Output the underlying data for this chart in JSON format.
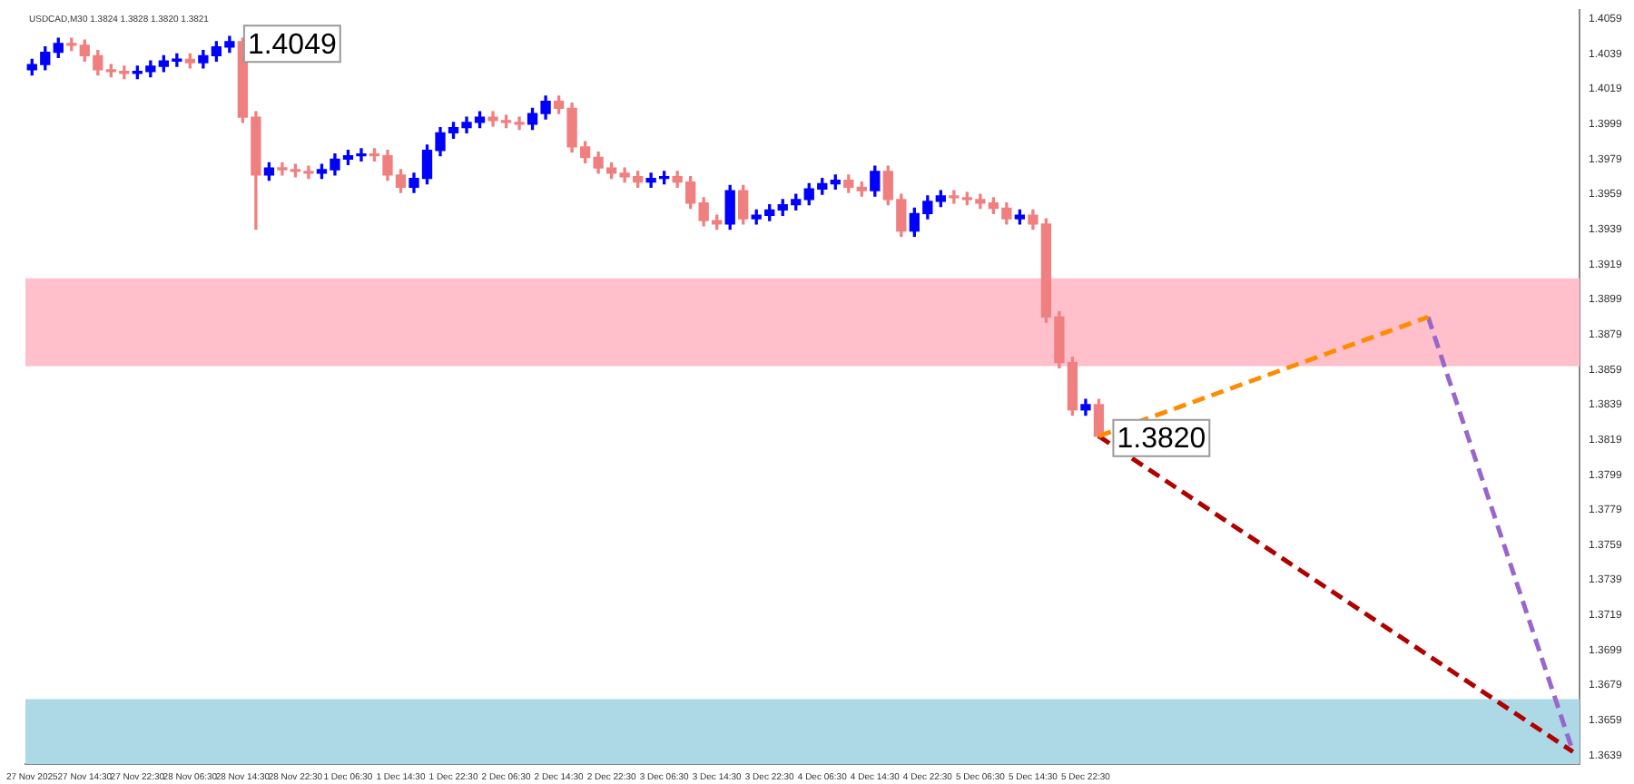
{
  "chart_data": {
    "type": "candlestick",
    "subtitle": "USDCAD,M30 1.3824 1.3828 1.3820 1.3821",
    "categories": [
      "27 Nov 2025",
      null,
      null,
      null,
      "27 Nov 14:30",
      null,
      null,
      null,
      "27 Nov 22:30",
      null,
      null,
      null,
      "28 Nov 06:30",
      null,
      null,
      null,
      "28 Nov 14:30",
      null,
      null,
      null,
      "28 Nov 22:30",
      null,
      null,
      null,
      "1 Dec 06:30",
      null,
      null,
      null,
      "1 Dec 14:30",
      null,
      null,
      null,
      "1 Dec 22:30",
      null,
      null,
      null,
      "2 Dec 06:30",
      null,
      null,
      null,
      "2 Dec 14:30",
      null,
      null,
      null,
      "2 Dec 22:30",
      null,
      null,
      null,
      "3 Dec 06:30",
      null,
      null,
      null,
      "3 Dec 14:30",
      null,
      null,
      null,
      "3 Dec 22:30",
      null,
      null,
      null,
      "4 Dec 06:30",
      null,
      null,
      null,
      "4 Dec 14:30",
      null,
      null,
      null,
      "4 Dec 22:30",
      null,
      null,
      null,
      "5 Dec 06:30",
      null,
      null,
      null,
      "5 Dec 14:30",
      null,
      null,
      null,
      "5 Dec 22:30",
      null,
      null,
      null,
      null,
      null,
      null,
      null,
      null,
      null,
      null,
      null,
      null,
      null,
      null,
      null,
      null,
      null,
      null,
      null,
      null,
      null,
      null,
      null,
      null,
      null,
      null,
      null,
      null,
      null,
      null,
      null,
      null,
      null,
      null,
      null,
      null,
      null
    ],
    "ohlc": [
      [
        1.403,
        1.4036,
        1.4027,
        1.4033
      ],
      [
        1.4033,
        1.4043,
        1.403,
        1.404
      ],
      [
        1.404,
        1.4048,
        1.4037,
        1.4045
      ],
      [
        1.4045,
        1.4048,
        1.4041,
        1.4044
      ],
      [
        1.4044,
        1.4047,
        1.4035,
        1.4038
      ],
      [
        1.4038,
        1.4041,
        1.4027,
        1.403
      ],
      [
        1.403,
        1.4033,
        1.4026,
        1.4029
      ],
      [
        1.4029,
        1.4032,
        1.4025,
        1.4028
      ],
      [
        1.4028,
        1.4032,
        1.4025,
        1.4029
      ],
      [
        1.4029,
        1.4035,
        1.4026,
        1.4032
      ],
      [
        1.4032,
        1.4038,
        1.4029,
        1.4035
      ],
      [
        1.4035,
        1.4039,
        1.4032,
        1.4036
      ],
      [
        1.4036,
        1.4039,
        1.4031,
        1.4034
      ],
      [
        1.4034,
        1.4041,
        1.4031,
        1.4038
      ],
      [
        1.4038,
        1.4046,
        1.4035,
        1.4043
      ],
      [
        1.4043,
        1.4049,
        1.404,
        1.4046
      ],
      [
        1.4046,
        1.4048,
        1.4,
        1.4003
      ],
      [
        1.4003,
        1.4006,
        1.3939,
        1.397
      ],
      [
        1.397,
        1.3977,
        1.3967,
        1.3974
      ],
      [
        1.3974,
        1.3977,
        1.397,
        1.3973
      ],
      [
        1.3973,
        1.3976,
        1.3969,
        1.3972
      ],
      [
        1.3972,
        1.3975,
        1.3968,
        1.3971
      ],
      [
        1.3971,
        1.3976,
        1.3968,
        1.3973
      ],
      [
        1.3973,
        1.3982,
        1.397,
        1.3979
      ],
      [
        1.3979,
        1.3984,
        1.3976,
        1.3981
      ],
      [
        1.3981,
        1.3985,
        1.3978,
        1.3982
      ],
      [
        1.3982,
        1.3985,
        1.3978,
        1.3981
      ],
      [
        1.3981,
        1.3984,
        1.3967,
        1.397
      ],
      [
        1.397,
        1.3973,
        1.396,
        1.3963
      ],
      [
        1.3963,
        1.3971,
        1.396,
        1.3968
      ],
      [
        1.3968,
        1.3987,
        1.3965,
        1.3984
      ],
      [
        1.3984,
        1.3997,
        1.3981,
        1.3994
      ],
      [
        1.3994,
        1.4,
        1.3991,
        1.3997
      ],
      [
        1.3997,
        1.4003,
        1.3994,
        1.4
      ],
      [
        1.4,
        1.4006,
        1.3997,
        1.4003
      ],
      [
        1.4003,
        1.4006,
        1.3998,
        1.4001
      ],
      [
        1.4001,
        1.4004,
        1.3997,
        1.4
      ],
      [
        1.4,
        1.4003,
        1.3996,
        1.3999
      ],
      [
        1.3999,
        1.4008,
        1.3996,
        1.4005
      ],
      [
        1.4005,
        1.4015,
        1.4002,
        1.4012
      ],
      [
        1.4012,
        1.4015,
        1.4005,
        1.4008
      ],
      [
        1.4008,
        1.4011,
        1.3983,
        1.3986
      ],
      [
        1.3986,
        1.3989,
        1.3977,
        1.398
      ],
      [
        1.398,
        1.3983,
        1.3971,
        1.3974
      ],
      [
        1.3974,
        1.3977,
        1.3968,
        1.3971
      ],
      [
        1.3971,
        1.3974,
        1.3966,
        1.3969
      ],
      [
        1.3969,
        1.3972,
        1.3963,
        1.3966
      ],
      [
        1.3966,
        1.3971,
        1.3963,
        1.3968
      ],
      [
        1.3968,
        1.3972,
        1.3965,
        1.3969
      ],
      [
        1.3969,
        1.3972,
        1.3963,
        1.3966
      ],
      [
        1.3966,
        1.3969,
        1.3951,
        1.3954
      ],
      [
        1.3954,
        1.3957,
        1.3941,
        1.3944
      ],
      [
        1.3944,
        1.3947,
        1.3939,
        1.3942
      ],
      [
        1.3942,
        1.3964,
        1.3939,
        1.3961
      ],
      [
        1.3961,
        1.3964,
        1.3942,
        1.3945
      ],
      [
        1.3945,
        1.395,
        1.3942,
        1.3947
      ],
      [
        1.3947,
        1.3953,
        1.3944,
        1.395
      ],
      [
        1.395,
        1.3956,
        1.3947,
        1.3953
      ],
      [
        1.3953,
        1.3959,
        1.395,
        1.3956
      ],
      [
        1.3956,
        1.3965,
        1.3953,
        1.3962
      ],
      [
        1.3962,
        1.3968,
        1.3959,
        1.3965
      ],
      [
        1.3965,
        1.397,
        1.3962,
        1.3967
      ],
      [
        1.3967,
        1.397,
        1.396,
        1.3963
      ],
      [
        1.3963,
        1.3966,
        1.3958,
        1.3961
      ],
      [
        1.3961,
        1.3975,
        1.3958,
        1.3972
      ],
      [
        1.3972,
        1.3975,
        1.3953,
        1.3956
      ],
      [
        1.3956,
        1.3959,
        1.3935,
        1.3938
      ],
      [
        1.3938,
        1.3951,
        1.3935,
        1.3948
      ],
      [
        1.3948,
        1.3958,
        1.3945,
        1.3955
      ],
      [
        1.3955,
        1.3961,
        1.3952,
        1.3958
      ],
      [
        1.3958,
        1.3961,
        1.3954,
        1.3957
      ],
      [
        1.3957,
        1.396,
        1.3953,
        1.3956
      ],
      [
        1.3956,
        1.3959,
        1.3951,
        1.3954
      ],
      [
        1.3954,
        1.3957,
        1.3948,
        1.3951
      ],
      [
        1.3951,
        1.3954,
        1.3942,
        1.3945
      ],
      [
        1.3945,
        1.395,
        1.3942,
        1.3947
      ],
      [
        1.3947,
        1.395,
        1.3939,
        1.3942
      ],
      [
        1.3942,
        1.3945,
        1.3886,
        1.3889
      ],
      [
        1.3889,
        1.3892,
        1.386,
        1.3863
      ],
      [
        1.3863,
        1.3866,
        1.3833,
        1.3836
      ],
      [
        1.3836,
        1.3842,
        1.3833,
        1.3839
      ],
      [
        1.3839,
        1.3842,
        1.382,
        1.3821
      ],
      null,
      null,
      null,
      null,
      null,
      null,
      null,
      null,
      null,
      null,
      null,
      null,
      null,
      null,
      null,
      null,
      null,
      null,
      null,
      null,
      null,
      null,
      null,
      null,
      null,
      null,
      null,
      null,
      null,
      null,
      null,
      null,
      null,
      null,
      null,
      null
    ],
    "colors": [
      "#0000ff",
      "#0000ff",
      "#0000ff",
      "#f08080",
      "#f08080",
      "#f08080",
      "#f08080",
      "#f08080",
      "#0000ff",
      "#0000ff",
      "#0000ff",
      "#0000ff",
      "#f08080",
      "#0000ff",
      "#0000ff",
      "#0000ff",
      "#f08080",
      "#f08080",
      "#0000ff",
      "#f08080",
      "#f08080",
      "#f08080",
      "#0000ff",
      "#0000ff",
      "#0000ff",
      "#0000ff",
      "#f08080",
      "#f08080",
      "#f08080",
      "#0000ff",
      "#0000ff",
      "#0000ff",
      "#0000ff",
      "#0000ff",
      "#0000ff",
      "#f08080",
      "#f08080",
      "#f08080",
      "#0000ff",
      "#0000ff",
      "#f08080",
      "#f08080",
      "#f08080",
      "#f08080",
      "#f08080",
      "#f08080",
      "#f08080",
      "#0000ff",
      "#0000ff",
      "#f08080",
      "#f08080",
      "#f08080",
      "#f08080",
      "#0000ff",
      "#f08080",
      "#0000ff",
      "#0000ff",
      "#0000ff",
      "#0000ff",
      "#0000ff",
      "#0000ff",
      "#0000ff",
      "#f08080",
      "#f08080",
      "#0000ff",
      "#f08080",
      "#f08080",
      "#0000ff",
      "#0000ff",
      "#0000ff",
      "#f08080",
      "#f08080",
      "#f08080",
      "#f08080",
      "#f08080",
      "#0000ff",
      "#f08080",
      "#f08080",
      "#f08080",
      "#f08080",
      "#0000ff",
      "#f08080",
      null,
      null,
      null,
      null,
      null,
      null,
      null,
      null,
      null,
      null,
      null,
      null,
      null,
      null,
      null,
      null,
      null,
      null,
      null,
      null,
      null,
      null,
      null,
      null,
      null,
      null,
      null,
      null,
      null,
      null,
      null,
      null,
      null,
      null,
      null,
      null
    ],
    "series": [
      {
        "type": "line",
        "color": "#ff8c00",
        "line_style": "dashed",
        "values": [
          null,
          null,
          null,
          null,
          null,
          null,
          null,
          null,
          null,
          null,
          null,
          null,
          null,
          null,
          null,
          null,
          null,
          null,
          null,
          null,
          null,
          null,
          null,
          null,
          null,
          null,
          null,
          null,
          null,
          null,
          null,
          null,
          null,
          null,
          null,
          null,
          null,
          null,
          null,
          null,
          null,
          null,
          null,
          null,
          null,
          null,
          null,
          null,
          null,
          null,
          null,
          null,
          null,
          null,
          null,
          null,
          null,
          null,
          null,
          null,
          null,
          null,
          null,
          null,
          null,
          null,
          null,
          null,
          null,
          null,
          null,
          null,
          null,
          null,
          null,
          null,
          null,
          null,
          null,
          null,
          null,
          1.3821,
          null,
          null,
          null,
          null,
          null,
          null,
          null,
          null,
          null,
          null,
          null,
          null,
          null,
          null,
          null,
          null,
          null,
          null,
          null,
          null,
          null,
          null,
          null,
          null,
          1.3889,
          null,
          null,
          null,
          null,
          null,
          null,
          null,
          null,
          null,
          null,
          null
        ]
      },
      {
        "type": "line",
        "color": "#9966cc",
        "line_style": "dashed",
        "values": [
          null,
          null,
          null,
          null,
          null,
          null,
          null,
          null,
          null,
          null,
          null,
          null,
          null,
          null,
          null,
          null,
          null,
          null,
          null,
          null,
          null,
          null,
          null,
          null,
          null,
          null,
          null,
          null,
          null,
          null,
          null,
          null,
          null,
          null,
          null,
          null,
          null,
          null,
          null,
          null,
          null,
          null,
          null,
          null,
          null,
          null,
          null,
          null,
          null,
          null,
          null,
          null,
          null,
          null,
          null,
          null,
          null,
          null,
          null,
          null,
          null,
          null,
          null,
          null,
          null,
          null,
          null,
          null,
          null,
          null,
          null,
          null,
          null,
          null,
          null,
          null,
          null,
          null,
          null,
          null,
          null,
          null,
          null,
          null,
          null,
          null,
          null,
          null,
          null,
          null,
          null,
          null,
          null,
          null,
          null,
          null,
          null,
          null,
          null,
          null,
          null,
          null,
          null,
          null,
          null,
          null,
          1.3889,
          null,
          null,
          null,
          null,
          null,
          null,
          null,
          null,
          null,
          null,
          1.3641
        ]
      },
      {
        "type": "line",
        "color": "#b00000",
        "line_style": "dashed",
        "values": [
          null,
          null,
          null,
          null,
          null,
          null,
          null,
          null,
          null,
          null,
          null,
          null,
          null,
          null,
          null,
          null,
          null,
          null,
          null,
          null,
          null,
          null,
          null,
          null,
          null,
          null,
          null,
          null,
          null,
          null,
          null,
          null,
          null,
          null,
          null,
          null,
          null,
          null,
          null,
          null,
          null,
          null,
          null,
          null,
          null,
          null,
          null,
          null,
          null,
          null,
          null,
          null,
          null,
          null,
          null,
          null,
          null,
          null,
          null,
          null,
          null,
          null,
          null,
          null,
          null,
          null,
          null,
          null,
          null,
          null,
          null,
          null,
          null,
          null,
          null,
          null,
          null,
          null,
          null,
          null,
          null,
          1.3821,
          null,
          null,
          null,
          null,
          null,
          null,
          null,
          null,
          null,
          null,
          null,
          null,
          null,
          null,
          null,
          null,
          null,
          null,
          null,
          null,
          null,
          null,
          null,
          null,
          null,
          null,
          null,
          null,
          null,
          null,
          null,
          null,
          null,
          null,
          null,
          1.3641
        ]
      }
    ],
    "ylim": [
      1.3634,
      1.4064
    ],
    "yticks": [
      1.4059,
      1.4039,
      1.4019,
      1.3999,
      1.3979,
      1.3959,
      1.3939,
      1.3919,
      1.3899,
      1.3879,
      1.3859,
      1.3839,
      1.3819,
      1.3799,
      1.3779,
      1.3759,
      1.3739,
      1.3719,
      1.3699,
      1.3679,
      1.3659,
      1.3639
    ],
    "bands": [
      {
        "axis": "y",
        "from": 1.3861,
        "to": 1.3911,
        "color": "#ffc0cb"
      },
      {
        "axis": "y",
        "from": 1.3634,
        "to": 1.3671,
        "color": "#add8e6"
      }
    ],
    "annotations": [
      "1.4049",
      "1.3820"
    ],
    "grid": false,
    "legend": false
  }
}
